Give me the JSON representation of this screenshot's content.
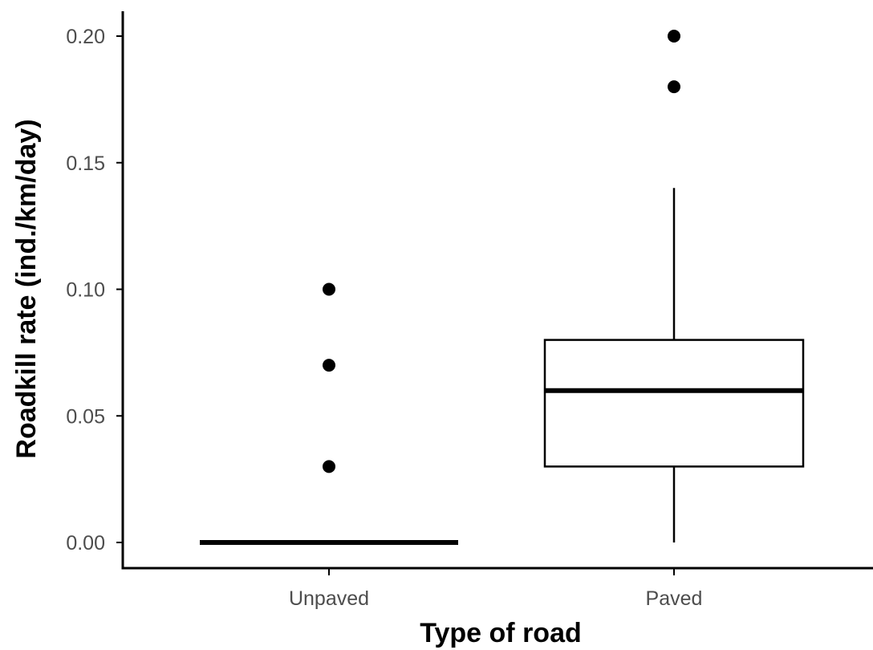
{
  "chart_data": {
    "type": "box",
    "xlabel": "Type of road",
    "ylabel": "Roadkill rate (ind./km/day)",
    "ylim": [
      -0.009,
      0.21
    ],
    "yticks": [
      0.0,
      0.05,
      0.1,
      0.15,
      0.2
    ],
    "ytick_labels": [
      "0.00",
      "0.05",
      "0.10",
      "0.15",
      "0.20"
    ],
    "categories": [
      "Unpaved",
      "Paved"
    ],
    "boxes": [
      {
        "category": "Unpaved",
        "min": 0.0,
        "q1": 0.0,
        "median": 0.0,
        "q3": 0.0,
        "max": 0.0,
        "outliers": [
          0.03,
          0.07,
          0.1
        ]
      },
      {
        "category": "Paved",
        "min": 0.0,
        "q1": 0.03,
        "median": 0.06,
        "q3": 0.08,
        "max": 0.14,
        "outliers": [
          0.18,
          0.2
        ]
      }
    ],
    "grid": false,
    "legend": "none",
    "colors": {
      "box_fill": "#ffffff",
      "box_line": "#000000",
      "axis": "#000000",
      "tick_label": "#4d4d4d"
    }
  }
}
